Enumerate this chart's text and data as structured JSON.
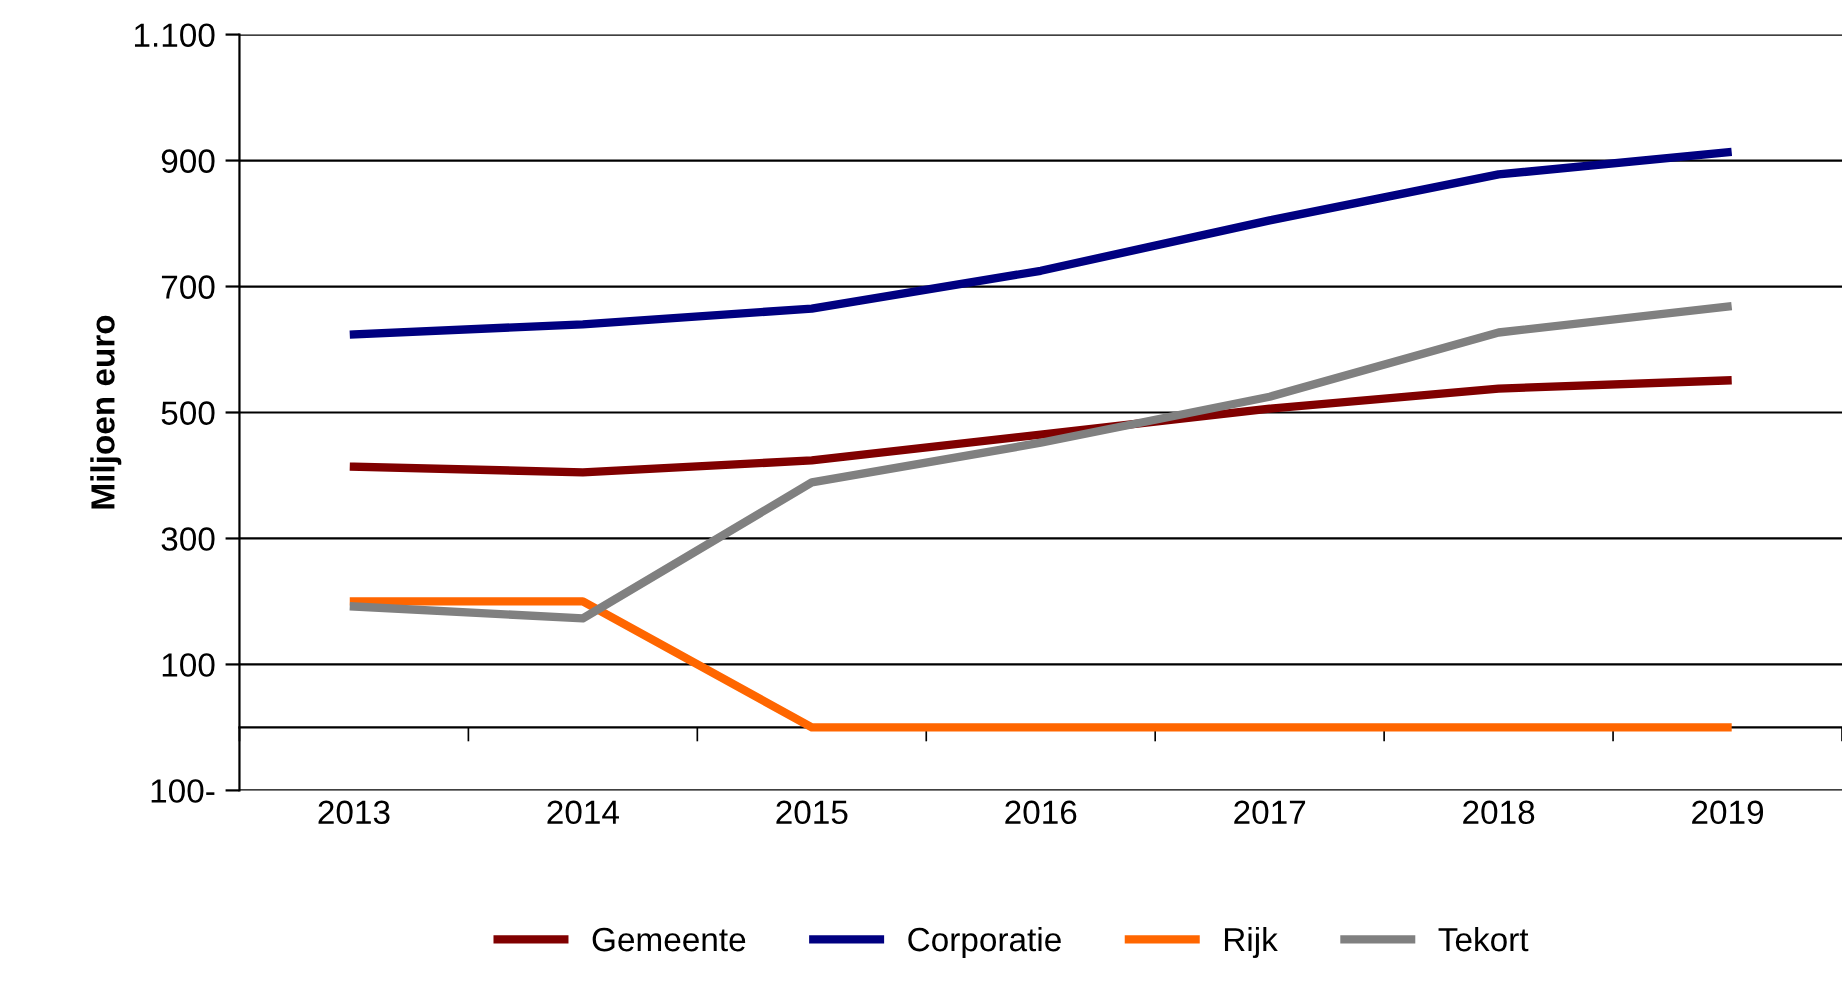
{
  "chart_data": {
    "type": "line",
    "ylabel": "Miljoen euro",
    "categories": [
      "2013",
      "2014",
      "2015",
      "2016",
      "2017",
      "2018",
      "2019"
    ],
    "series": [
      {
        "name": "Gemeente",
        "color": "#800000",
        "values": [
          414,
          405,
          424,
          465,
          506,
          538,
          551
        ]
      },
      {
        "name": "Corporatie",
        "color": "#000080",
        "values": [
          624,
          640,
          665,
          725,
          805,
          878,
          913
        ]
      },
      {
        "name": "Rijk",
        "color": "#ff6600",
        "values": [
          200,
          200,
          0,
          0,
          0,
          0,
          0
        ]
      },
      {
        "name": "Tekort",
        "color": "#808080",
        "values": [
          192,
          173,
          389,
          452,
          525,
          627,
          668
        ]
      }
    ],
    "ylim": [
      -100,
      1100
    ],
    "yticks": [
      {
        "value": -100,
        "label": "100-"
      },
      100,
      300,
      500,
      700,
      900,
      {
        "value": 1100,
        "label": "1.100"
      }
    ],
    "grid": "y",
    "legend": "bottom",
    "marker": "none",
    "line_style": "solid"
  }
}
